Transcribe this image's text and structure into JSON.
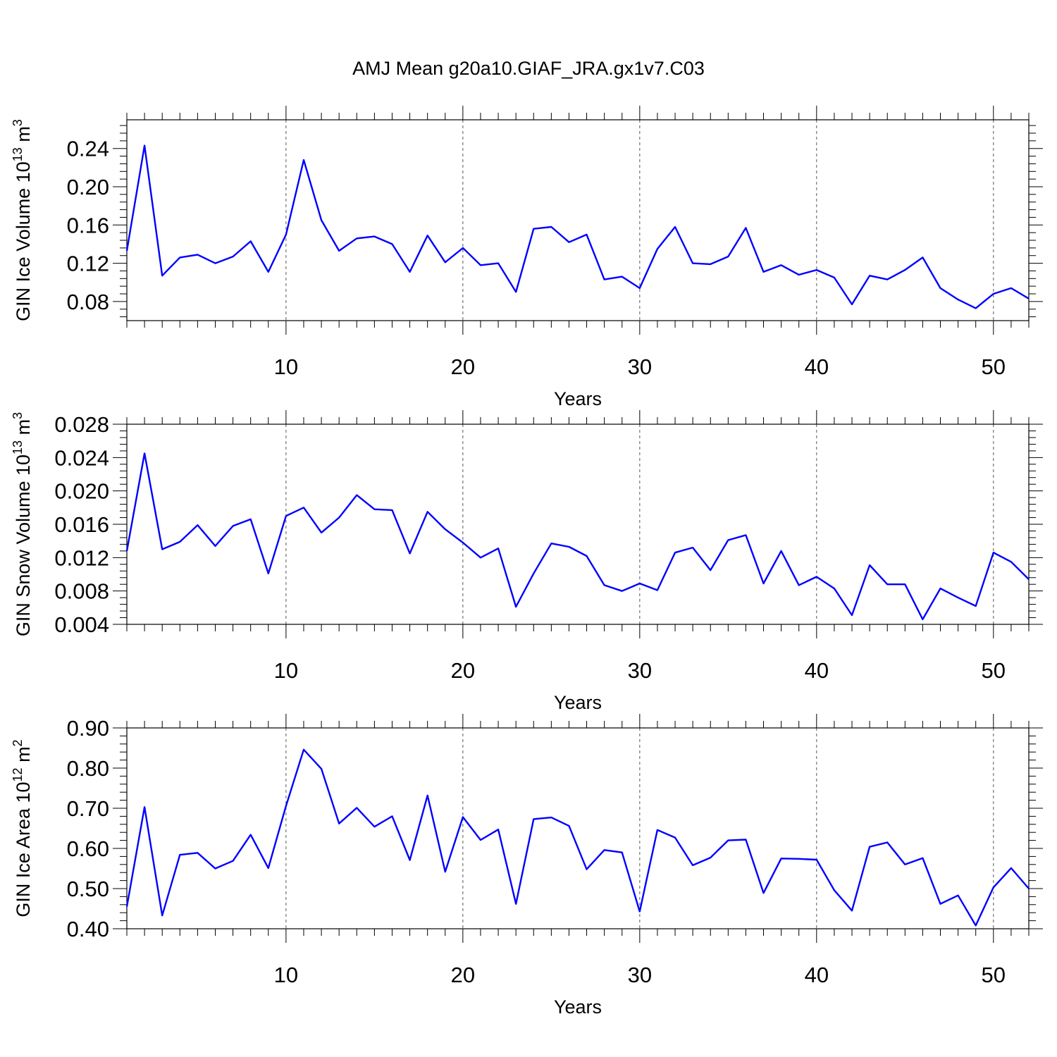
{
  "title": "AMJ Mean g20a10.GIAF_JRA.gx1v7.C03",
  "line_color": "#0000ff",
  "chart_data": [
    {
      "type": "line",
      "ylabel": "GIN Ice Volume 10",
      "ylabel_exp": "13",
      "ylabel_unit": " m",
      "ylabel_unit_exp": "3",
      "xlabel": "Years",
      "xlim": [
        1,
        52
      ],
      "ylim": [
        0.06,
        0.27
      ],
      "yticks": [
        0.08,
        0.12,
        0.16,
        0.2,
        0.24
      ],
      "ytick_labels": [
        "0.08",
        "0.12",
        "0.16",
        "0.20",
        "0.24"
      ],
      "xticks": [
        10,
        20,
        30,
        40,
        50
      ],
      "xtick_labels": [
        "10",
        "20",
        "30",
        "40",
        "50"
      ],
      "x": [
        1,
        2,
        3,
        4,
        5,
        6,
        7,
        8,
        9,
        10,
        11,
        12,
        13,
        14,
        15,
        16,
        17,
        18,
        19,
        20,
        21,
        22,
        23,
        24,
        25,
        26,
        27,
        28,
        29,
        30,
        31,
        32,
        33,
        34,
        35,
        36,
        37,
        38,
        39,
        40,
        41,
        42,
        43,
        44,
        45,
        46,
        47,
        48,
        49,
        50,
        51,
        52
      ],
      "values": [
        0.133,
        0.243,
        0.107,
        0.126,
        0.129,
        0.12,
        0.127,
        0.143,
        0.111,
        0.15,
        0.228,
        0.165,
        0.133,
        0.146,
        0.148,
        0.14,
        0.111,
        0.149,
        0.121,
        0.136,
        0.118,
        0.12,
        0.09,
        0.156,
        0.158,
        0.142,
        0.15,
        0.103,
        0.106,
        0.094,
        0.135,
        0.158,
        0.12,
        0.119,
        0.127,
        0.157,
        0.111,
        0.118,
        0.108,
        0.113,
        0.105,
        0.077,
        0.107,
        0.103,
        0.113,
        0.126,
        0.094,
        0.082,
        0.073,
        0.088,
        0.094,
        0.083
      ]
    },
    {
      "type": "line",
      "ylabel": "GIN Snow Volume 10",
      "ylabel_exp": "13",
      "ylabel_unit": " m",
      "ylabel_unit_exp": "3",
      "xlabel": "Years",
      "xlim": [
        1,
        52
      ],
      "ylim": [
        0.004,
        0.028
      ],
      "yticks": [
        0.004,
        0.008,
        0.012,
        0.016,
        0.02,
        0.024,
        0.028
      ],
      "ytick_labels": [
        "0.004",
        "0.008",
        "0.012",
        "0.016",
        "0.020",
        "0.024",
        "0.028"
      ],
      "xticks": [
        10,
        20,
        30,
        40,
        50
      ],
      "xtick_labels": [
        "10",
        "20",
        "30",
        "40",
        "50"
      ],
      "x": [
        1,
        2,
        3,
        4,
        5,
        6,
        7,
        8,
        9,
        10,
        11,
        12,
        13,
        14,
        15,
        16,
        17,
        18,
        19,
        20,
        21,
        22,
        23,
        24,
        25,
        26,
        27,
        28,
        29,
        30,
        31,
        32,
        33,
        34,
        35,
        36,
        37,
        38,
        39,
        40,
        41,
        42,
        43,
        44,
        45,
        46,
        47,
        48,
        49,
        50,
        51,
        52
      ],
      "values": [
        0.0128,
        0.0245,
        0.013,
        0.0139,
        0.0159,
        0.0134,
        0.0158,
        0.0166,
        0.0101,
        0.017,
        0.018,
        0.015,
        0.0168,
        0.0195,
        0.0178,
        0.0177,
        0.0125,
        0.0175,
        0.0154,
        0.0138,
        0.012,
        0.0131,
        0.0061,
        0.0101,
        0.0137,
        0.0133,
        0.0122,
        0.0087,
        0.008,
        0.0089,
        0.0081,
        0.0126,
        0.0132,
        0.0105,
        0.0141,
        0.0147,
        0.0089,
        0.0128,
        0.0087,
        0.0097,
        0.0083,
        0.0051,
        0.0111,
        0.0088,
        0.0088,
        0.0046,
        0.0083,
        0.0072,
        0.0062,
        0.0126,
        0.0115,
        0.0094
      ]
    },
    {
      "type": "line",
      "ylabel": "GIN Ice Area 10",
      "ylabel_exp": "12",
      "ylabel_unit": " m",
      "ylabel_unit_exp": "2",
      "xlabel": "Years",
      "xlim": [
        1,
        52
      ],
      "ylim": [
        0.4,
        0.9
      ],
      "yticks": [
        0.4,
        0.5,
        0.6,
        0.7,
        0.8,
        0.9
      ],
      "ytick_labels": [
        "0.40",
        "0.50",
        "0.60",
        "0.70",
        "0.80",
        "0.90"
      ],
      "xticks": [
        10,
        20,
        30,
        40,
        50
      ],
      "xtick_labels": [
        "10",
        "20",
        "30",
        "40",
        "50"
      ],
      "x": [
        1,
        2,
        3,
        4,
        5,
        6,
        7,
        8,
        9,
        10,
        11,
        12,
        13,
        14,
        15,
        16,
        17,
        18,
        19,
        20,
        21,
        22,
        23,
        24,
        25,
        26,
        27,
        28,
        29,
        30,
        31,
        32,
        33,
        34,
        35,
        36,
        37,
        38,
        39,
        40,
        41,
        42,
        43,
        44,
        45,
        46,
        47,
        48,
        49,
        50,
        51,
        52
      ],
      "values": [
        0.455,
        0.703,
        0.433,
        0.584,
        0.589,
        0.55,
        0.569,
        0.634,
        0.551,
        0.706,
        0.846,
        0.798,
        0.662,
        0.701,
        0.654,
        0.68,
        0.571,
        0.732,
        0.542,
        0.678,
        0.621,
        0.647,
        0.462,
        0.673,
        0.677,
        0.656,
        0.548,
        0.596,
        0.59,
        0.443,
        0.646,
        0.627,
        0.558,
        0.577,
        0.62,
        0.622,
        0.489,
        0.575,
        0.574,
        0.572,
        0.496,
        0.445,
        0.604,
        0.615,
        0.56,
        0.576,
        0.462,
        0.483,
        0.408,
        0.503,
        0.551,
        0.5
      ]
    }
  ]
}
